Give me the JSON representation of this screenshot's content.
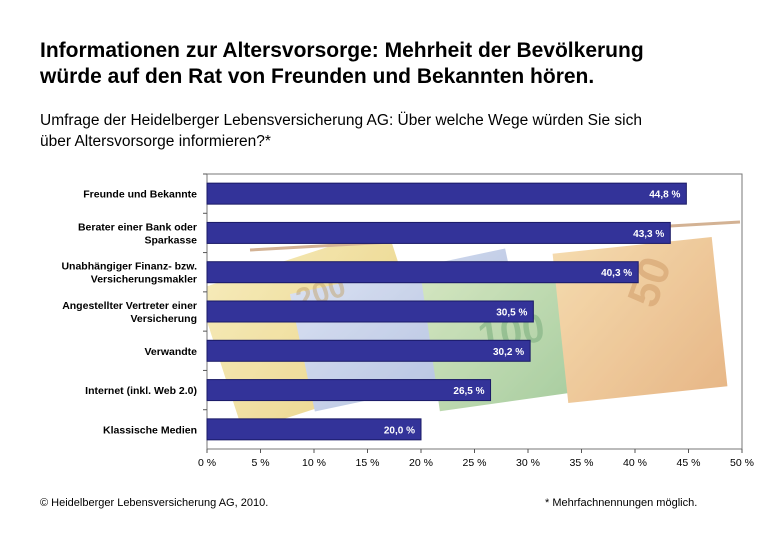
{
  "title_line1": "Informationen zur Altersvorsorge: Mehrheit der Bevölkerung",
  "title_line2": "würde auf den Rat von Freunden und Bekannten hören.",
  "subtitle_line1": "Umfrage der Heidelberger Lebensversicherung AG: Über welche Wege würden Sie sich",
  "subtitle_line2": "über Altersvorsorge informieren?*",
  "footer_left": "© Heidelberger Lebensversicherung AG, 2010.",
  "footer_right": "* Mehrfachnennungen möglich.",
  "colors": {
    "bar": "#333399",
    "bar_border": "#1a1a66",
    "label": "#ffffff"
  },
  "chart_data": {
    "type": "bar",
    "orientation": "horizontal",
    "categories": [
      [
        "Freunde und Bekannte"
      ],
      [
        "Berater einer Bank oder",
        "Sparkasse"
      ],
      [
        "Unabhängiger Finanz- bzw.",
        "Versicherungsmakler"
      ],
      [
        "Angestellter Vertreter einer",
        "Versicherung"
      ],
      [
        "Verwandte"
      ],
      [
        "Internet (inkl. Web 2.0)"
      ],
      [
        "Klassische Medien"
      ]
    ],
    "values": [
      44.8,
      43.3,
      40.3,
      30.5,
      30.2,
      26.5,
      20.0
    ],
    "value_labels": [
      "44,8 %",
      "43,3 %",
      "40,3 %",
      "30,5 %",
      "30,2 %",
      "26,5 %",
      "20,0 %"
    ],
    "xlim": [
      0,
      50
    ],
    "x_ticks": [
      0,
      5,
      10,
      15,
      20,
      25,
      30,
      35,
      40,
      45,
      50
    ],
    "x_tick_labels": [
      "0 %",
      "5 %",
      "10 %",
      "15 %",
      "20 %",
      "25 %",
      "30 %",
      "35 %",
      "40 %",
      "45 %",
      "50 %"
    ],
    "grid": false,
    "legend": "none",
    "background": "euro-banknotes"
  }
}
